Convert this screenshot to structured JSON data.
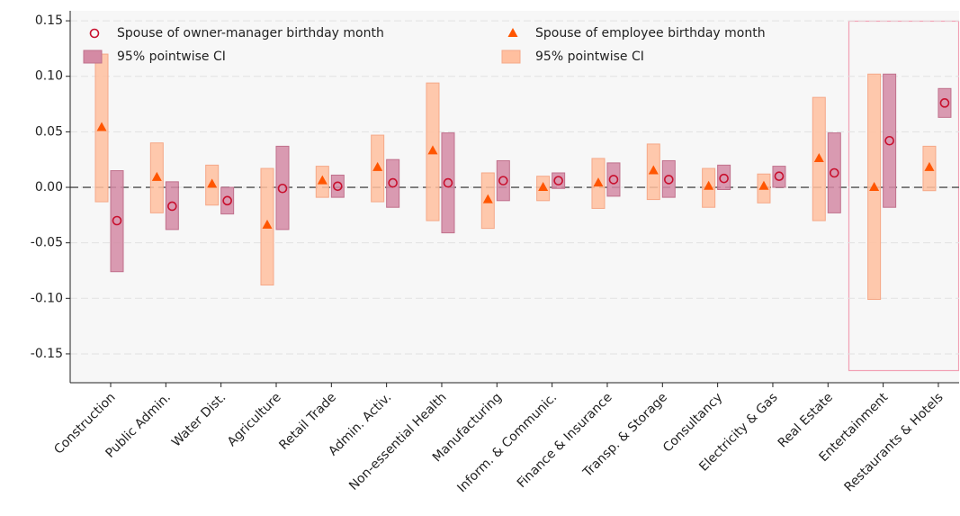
{
  "chart_data": {
    "type": "interval",
    "categories": [
      "Construction",
      "Public Admin.",
      "Water Dist.",
      "Agriculture",
      "Retail Trade",
      "Admin. Activ.",
      "Non-essential Health",
      "Manufacturing",
      "Inform. & Communic.",
      "Finance & Insurance",
      "Transp. & Storage",
      "Consultancy",
      "Electricity & Gas",
      "Real Estate",
      "Entertainment",
      "Restaurants & Hotels"
    ],
    "series": [
      {
        "name": "Spouse of owner-manager birthday month",
        "ci_name": "95% pointwise CI",
        "marker": "circle",
        "color": "#c8102e",
        "ci_color": "#d48aa4",
        "ci_edge": "#c0708c",
        "values": [
          -0.03,
          -0.017,
          -0.012,
          -0.001,
          0.001,
          0.004,
          0.004,
          0.006,
          0.006,
          0.007,
          0.007,
          0.008,
          0.01,
          0.013,
          0.042,
          0.076
        ],
        "lower": [
          -0.076,
          -0.038,
          -0.024,
          -0.038,
          -0.009,
          -0.018,
          -0.041,
          -0.012,
          -0.001,
          -0.008,
          -0.009,
          -0.002,
          0.0,
          -0.023,
          -0.018,
          0.063
        ],
        "upper": [
          0.015,
          0.005,
          0.0,
          0.037,
          0.011,
          0.025,
          0.049,
          0.024,
          0.013,
          0.022,
          0.024,
          0.02,
          0.019,
          0.049,
          0.102,
          0.089
        ]
      },
      {
        "name": "Spouse of employee birthday month",
        "ci_name": "95% pointwise CI",
        "marker": "triangle",
        "color": "#ff5500",
        "ci_color": "#ffbf9f",
        "ci_edge": "#f5a888",
        "values": [
          0.054,
          0.009,
          0.003,
          -0.034,
          0.006,
          0.018,
          0.033,
          -0.011,
          0.0,
          0.004,
          0.015,
          0.001,
          0.001,
          0.026,
          0.0,
          0.018
        ],
        "lower": [
          -0.013,
          -0.023,
          -0.016,
          -0.088,
          -0.009,
          -0.013,
          -0.03,
          -0.037,
          -0.012,
          -0.019,
          -0.011,
          -0.018,
          -0.014,
          -0.03,
          -0.101,
          -0.003
        ],
        "upper": [
          0.12,
          0.04,
          0.02,
          0.017,
          0.019,
          0.047,
          0.094,
          0.013,
          0.01,
          0.026,
          0.039,
          0.017,
          0.012,
          0.081,
          0.102,
          0.037
        ]
      }
    ],
    "ylim": [
      -0.176,
      0.159
    ],
    "yticks": [
      0.15,
      {
        "value": 0.1,
        "label": "0.10"
      },
      0.05,
      {
        "value": 0,
        "label": "0.00"
      },
      -0.05,
      {
        "value": -0.1,
        "label": "-0.10"
      },
      -0.15
    ],
    "reference_line": 0,
    "grid": true
  }
}
